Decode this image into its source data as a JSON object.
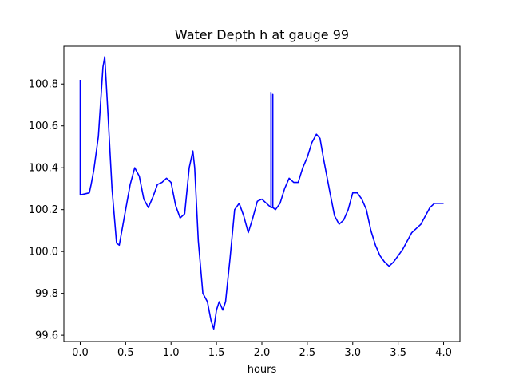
{
  "chart_data": {
    "type": "line",
    "title": "Water Depth h at gauge 99",
    "xlabel": "hours",
    "ylabel": "",
    "xlim": [
      -0.18,
      4.18
    ],
    "ylim": [
      99.57,
      100.98
    ],
    "xticks": [
      0.0,
      0.5,
      1.0,
      1.5,
      2.0,
      2.5,
      3.0,
      3.5,
      4.0
    ],
    "xtick_labels": [
      "0.0",
      "0.5",
      "1.0",
      "1.5",
      "2.0",
      "2.5",
      "3.0",
      "3.5",
      "4.0"
    ],
    "yticks": [
      99.6,
      99.8,
      100.0,
      100.2,
      100.4,
      100.6,
      100.8
    ],
    "ytick_labels": [
      "99.6",
      "99.8",
      "100.0",
      "100.2",
      "100.4",
      "100.6",
      "100.8"
    ],
    "grid": false,
    "series": [
      {
        "color": "#0000ff",
        "x": [
          0.0,
          0.0,
          0.0,
          0.1,
          0.12,
          0.15,
          0.2,
          0.25,
          0.27,
          0.3,
          0.35,
          0.4,
          0.43,
          0.5,
          0.55,
          0.6,
          0.65,
          0.7,
          0.75,
          0.8,
          0.85,
          0.9,
          0.95,
          1.0,
          1.05,
          1.1,
          1.15,
          1.2,
          1.24,
          1.26,
          1.3,
          1.35,
          1.4,
          1.44,
          1.47,
          1.5,
          1.53,
          1.57,
          1.6,
          1.65,
          1.7,
          1.75,
          1.8,
          1.85,
          1.9,
          1.95,
          2.0,
          2.05,
          2.1,
          2.1,
          2.1,
          2.12,
          2.12,
          2.12,
          2.15,
          2.2,
          2.25,
          2.3,
          2.35,
          2.4,
          2.45,
          2.5,
          2.55,
          2.6,
          2.64,
          2.68,
          2.75,
          2.8,
          2.85,
          2.9,
          2.95,
          3.0,
          3.05,
          3.1,
          3.15,
          3.2,
          3.25,
          3.3,
          3.35,
          3.4,
          3.45,
          3.5,
          3.55,
          3.6,
          3.65,
          3.7,
          3.75,
          3.8,
          3.85,
          3.9,
          3.95,
          4.0
        ],
        "y": [
          100.82,
          100.27,
          100.27,
          100.28,
          100.32,
          100.39,
          100.55,
          100.88,
          100.93,
          100.7,
          100.3,
          100.04,
          100.03,
          100.2,
          100.32,
          100.4,
          100.36,
          100.25,
          100.21,
          100.26,
          100.32,
          100.33,
          100.35,
          100.33,
          100.22,
          100.16,
          100.18,
          100.4,
          100.48,
          100.4,
          100.05,
          99.8,
          99.76,
          99.67,
          99.63,
          99.72,
          99.76,
          99.72,
          99.76,
          99.97,
          100.2,
          100.23,
          100.17,
          100.09,
          100.16,
          100.24,
          100.25,
          100.23,
          100.21,
          100.76,
          100.21,
          100.21,
          100.75,
          100.21,
          100.2,
          100.23,
          100.3,
          100.35,
          100.33,
          100.33,
          100.4,
          100.45,
          100.52,
          100.56,
          100.54,
          100.44,
          100.28,
          100.17,
          100.13,
          100.15,
          100.2,
          100.28,
          100.28,
          100.25,
          100.2,
          100.1,
          100.03,
          99.98,
          99.95,
          99.93,
          99.95,
          99.98,
          100.01,
          100.05,
          100.09,
          100.11,
          100.13,
          100.17,
          100.21,
          100.23,
          100.23,
          100.23
        ]
      }
    ]
  }
}
